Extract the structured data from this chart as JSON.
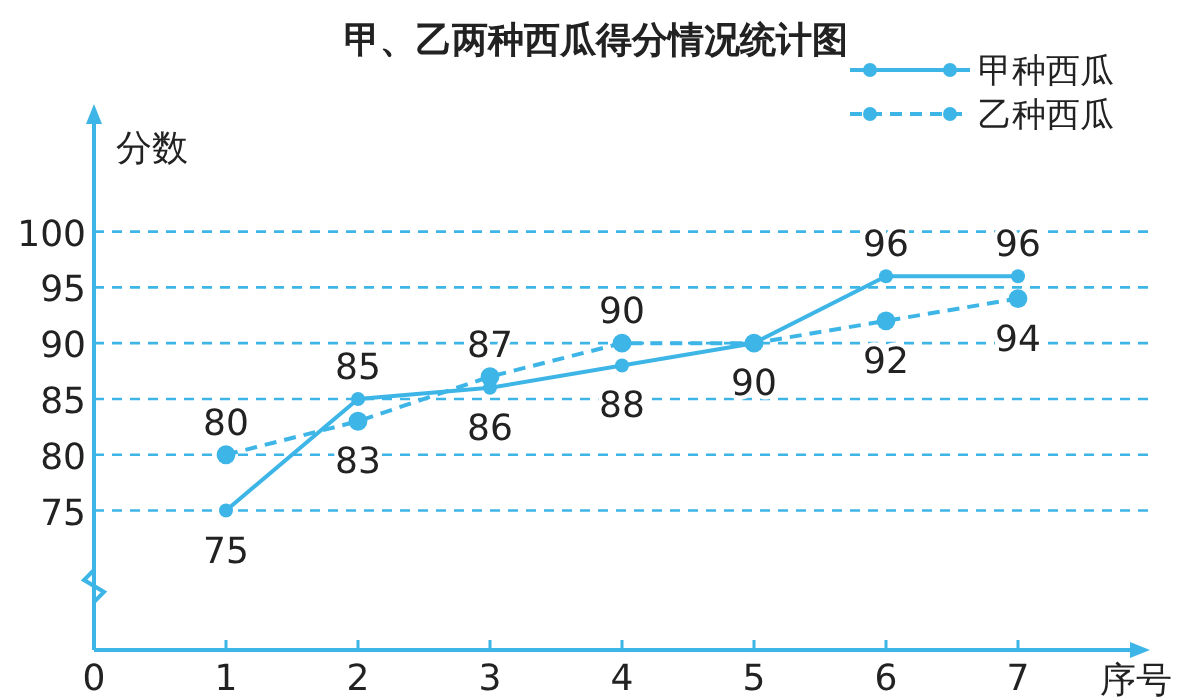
{
  "chart_data": {
    "type": "line",
    "title": "甲、乙两种西瓜得分情况统计图",
    "xlabel": "序号",
    "ylabel": "分数",
    "x": [
      1,
      2,
      3,
      4,
      5,
      6,
      7
    ],
    "series": [
      {
        "name": "甲种西瓜",
        "color": "#3db5e6",
        "line_style": "solid",
        "values": [
          75,
          85,
          86,
          88,
          90,
          96,
          96
        ],
        "value_labels": [
          "75",
          "85",
          "86",
          "88",
          "90",
          "96",
          "96"
        ]
      },
      {
        "name": "乙种西瓜",
        "color": "#3db5e6",
        "line_style": "dashed",
        "values": [
          80,
          83,
          87,
          90,
          90,
          92,
          94
        ],
        "value_labels": [
          "80",
          "83",
          "87",
          "90",
          null,
          "92",
          "94"
        ]
      }
    ],
    "xlim": [
      0,
      8
    ],
    "xticks": [
      0,
      1,
      2,
      3,
      4,
      5,
      6,
      7
    ],
    "ylim": [
      62.5,
      110
    ],
    "yticks": [
      75,
      80,
      85,
      90,
      95,
      100
    ],
    "grid": "y",
    "legend": "top right",
    "marker": "circle"
  }
}
